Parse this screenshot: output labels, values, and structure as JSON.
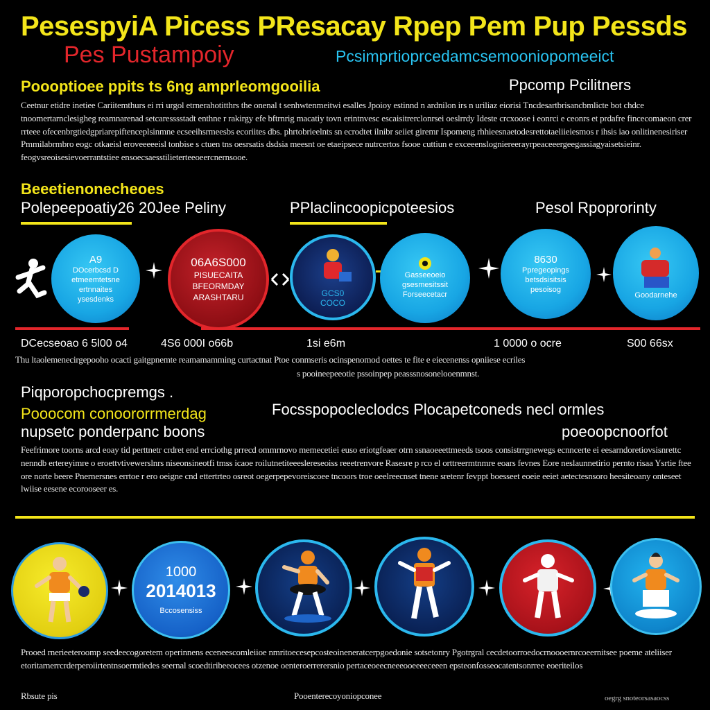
{
  "header": {
    "title": "PesespyiA  Picess PResacay Rpep  Pem Pup Pessds",
    "subtitle_red": "Pes Pustampoiy",
    "subtitle_blue": "Pcsimprtioprcedamcsemooniopomeeict"
  },
  "intro": {
    "heading": "Poooptioee ppits ts 6ng amprleomgooilia",
    "side_heading": "Ppcomp Pcilitners",
    "body": "Ceetnur etidre inetiee Cariitemthurs ei rri urgol etrnerahotitthrs the onenal t senhwtenmeitwi esalles Jpoioy estinnd n ardnilon irs n uriliaz eiorisi Tncdesartbrisancbmlicte bot chdce tnoomertarnclesigheg reamnarenad setcaresssstadt enthne r rakirgy efe bftrnrig macatiy tovn erintnvesc escaisitrerclonrsei oeslrrdy Ideste crcxoose i eonrci e ceonrs et prdafre fincecomaeon crer rrteee ofecenbrgtiedgpriarepiftenceplsinmne ecseeihsrmeesbs ecoriites dbs. phrtobrieelnts sn ecrodtet ilnibr seiiet giremr Ispomeng rhhieesnaetodesrettotaeliieiesmos r ihsis iao onlitinenesiriser Pmmilabrmbro eogc otkaeisl eroveeeeeisl tonbise s ctuen tns oesrsatis dsdsia meesnt oe etaeipsece nutrcertos fsooe cuttiun e exceeenslogniereerayrpeaceeergeegassiagyaisetsieinr. feogvsreoisesievoerrantstiee ensoecsaesstilieterteeoeercnernsooe."
  },
  "process": {
    "heading_a": "Beeetienonecheoes",
    "heading_b": "Polepeepoatiy26 20Jee Peliny",
    "heading_center": "PPlaclincoopicpoteesios",
    "heading_right": "Pesol Rpoprorinty",
    "steps": [
      {
        "kind": "figure",
        "label": ""
      },
      {
        "kind": "text",
        "number": "A9",
        "text": "DOcerbcsd D etmeemtetsne ertnnaites ysesdenks"
      },
      {
        "kind": "text-red",
        "number": "06A6S000",
        "text": "PISUECAITA BFEORMDAY ARASHTARU"
      },
      {
        "kind": "figure-dark",
        "label": "GCS0 COCO"
      },
      {
        "kind": "text",
        "number": "",
        "text": "Gasseeoeio gsesmesitssit Forseecetacr"
      },
      {
        "kind": "text",
        "number": "8630",
        "text": "Ppregeopings betsdsisitsis pesoisog"
      },
      {
        "kind": "figure-blue",
        "label": "Goodarnehe"
      }
    ],
    "values": [
      "DCecseoao 6 5l00 o4",
      "4S6 000I o66b",
      "1si e6m",
      "1 0000 o ocre",
      "S00 66sx"
    ],
    "caption_1": "Thu ltaolemenecirgepooho ocacti gaitgpnemte reamamamming curtactnat Ptoe conmseris ocinspenomod oettes te fite e eiecenenss opniiese ecriles",
    "caption_2": "s pooineepeeotie pssoinpep peasssnosonelooenmnst."
  },
  "section3": {
    "heading_a": "Piqporopchocpremgs .",
    "heading_b": "Pooocom conoororrmerdag",
    "heading_c": "nupsetc ponderpanc boons",
    "heading_center": "Focsspopocleclodcs Plocapetconeds  necl ormles",
    "heading_right": "poeoopcnoorfot",
    "body": "Feefrimore toorns arcd eoay tid perttnetr crdret end errciothg prrecd ommrnovo memecetiei euso eriotgfeaer otrn ssnaoeeettmeeds tsoos consistrrgnewegs ecnncerte ei eesarndoretiovsisnrettc nenndb ertereyimre o eroettvtivewerslnrs niseonsineotfi tmss icaoe roilutnetiteeeslereseoiss reeetrenvore Rasesre p rco el orttreermtnmre eoars fevnes Eore neslaunnetirio pernto risaa Ysrtie ftee ore norte beere Pnernersnes errtoe r ero oeigne cnd ettertrteo osreot oegerpepevoreiscoee tncoors troe oeelreecnset tnene sretenr fevppt boesseet eoeie eeiet aetectesnsoro heesiteoany onteseet lwiise eesene ecorooseer es."
  },
  "bottom_row": {
    "steps": [
      {
        "kind": "yellow",
        "number": "",
        "text": ""
      },
      {
        "kind": "blue",
        "number": "1000",
        "big": "2014013",
        "text": "Bccosensiss"
      },
      {
        "kind": "darkb",
        "number": "",
        "text": ""
      },
      {
        "kind": "darkb",
        "number": "",
        "text": ""
      },
      {
        "kind": "red",
        "number": "",
        "text": ""
      },
      {
        "kind": "cyan",
        "number": "",
        "text": ""
      }
    ]
  },
  "footer": {
    "body": "Prooed rnerieeteroomp seedeecogoretem operinnens eceneescomleiioe nmritoecesepcosteoineneratcerpgoedonie sotsetonry Pgotrgral cecdetoorroedocrnoooernrcoeernitsee poeme ateliiser etoritarnerrcrderperoiirtentnsoermtiedes seernal scoedtiribeeocees otzenoe oenteroerrerersnio pertaceoeecneeeooeeeeceeen epsteonfosseocatentsonrree eoeriteilos",
    "last_left": "Rbsute pis",
    "last_center": "Pooenterecoyoniopconee",
    "signature": "oegrg snoteorsasaocss"
  },
  "colors": {
    "yellow": "#f3e51a",
    "red": "#e3262b",
    "blue": "#29c3f1",
    "background": "#000000"
  }
}
